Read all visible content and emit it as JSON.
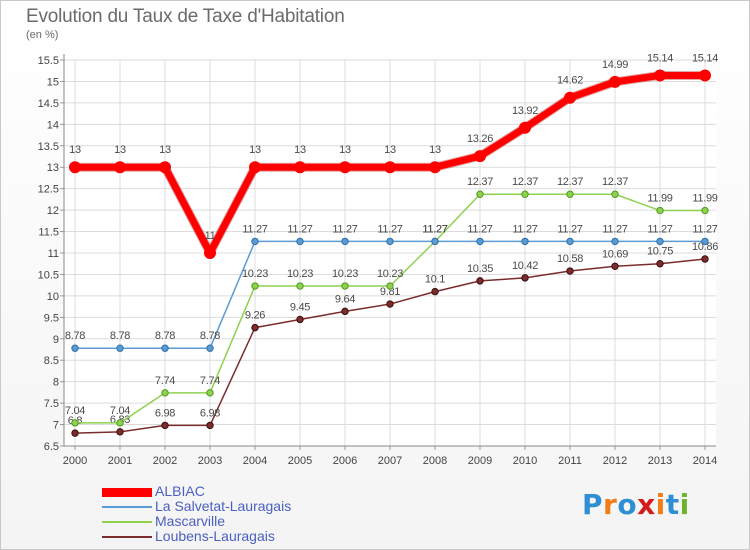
{
  "title": "Evolution du Taux de Taxe d'Habitation",
  "subtitle": "(en %)",
  "logo": {
    "text": "Proxiti",
    "colors": [
      "#2e8fd4",
      "#f07d1a",
      "#2e8fd4",
      "#d41a1a",
      "#f07d1a",
      "#2e8fd4",
      "#6cb32e"
    ]
  },
  "chart_data": {
    "type": "line",
    "title": "Evolution du Taux de Taxe d'Habitation",
    "subtitle": "(en %)",
    "xlabel": "",
    "ylabel": "",
    "x": [
      2000,
      2001,
      2002,
      2003,
      2004,
      2005,
      2006,
      2007,
      2008,
      2009,
      2010,
      2011,
      2012,
      2013,
      2014
    ],
    "ylim": [
      6.5,
      15.5
    ],
    "yticks": [
      6.5,
      7,
      7.5,
      8,
      8.5,
      9,
      9.5,
      10,
      10.5,
      11,
      11.5,
      12,
      12.5,
      13,
      13.5,
      14,
      14.5,
      15,
      15.5
    ],
    "grid": true,
    "legend_position": "bottom-left",
    "series": [
      {
        "name": "ALBIAC",
        "color": "#ff0000",
        "values": [
          13,
          13,
          13,
          11,
          13,
          13,
          13,
          13,
          13,
          13.26,
          13.92,
          14.62,
          14.99,
          15.14,
          15.14
        ],
        "labels": [
          "13",
          "13",
          "13",
          "11",
          "13",
          "13",
          "13",
          "13",
          "13",
          "13.26",
          "13.92",
          "14.62",
          "14.99",
          "15.14",
          "15.14"
        ]
      },
      {
        "name": "La Salvetat-Lauragais",
        "color": "#5b9bd5",
        "values": [
          8.78,
          8.78,
          8.78,
          8.78,
          11.27,
          11.27,
          11.27,
          11.27,
          11.27,
          11.27,
          11.27,
          11.27,
          11.27,
          11.27,
          11.27
        ],
        "labels": [
          "8.78",
          "8.78",
          "8.78",
          "8.78",
          "11.27",
          "11.27",
          "11.27",
          "11.27",
          "11.27",
          "11.27",
          "11.27",
          "11.27",
          "11.27",
          "11.27",
          "11.27"
        ]
      },
      {
        "name": "Mascarville",
        "color": "#8fd14f",
        "values": [
          7.04,
          7.04,
          7.74,
          7.74,
          10.23,
          10.23,
          10.23,
          10.23,
          11.27,
          12.37,
          12.37,
          12.37,
          12.37,
          11.99,
          11.99
        ],
        "labels": [
          "7.04",
          "7.04",
          "7.74",
          "7.74",
          "10.23",
          "10.23",
          "10.23",
          "10.23",
          "11.27",
          "12.37",
          "12.37",
          "12.37",
          "12.37",
          "11.99",
          "11.99"
        ]
      },
      {
        "name": "Loubens-Lauragais",
        "color": "#7b2c2c",
        "values": [
          6.8,
          6.83,
          6.98,
          6.98,
          9.26,
          9.45,
          9.64,
          9.81,
          10.1,
          10.35,
          10.42,
          10.58,
          10.69,
          10.75,
          10.86
        ],
        "labels": [
          "6.8",
          "6.83",
          "6.98",
          "6.98",
          "9.26",
          "9.45",
          "9.64",
          "9.81",
          "10.1",
          "10.35",
          "10.42",
          "10.58",
          "10.69",
          "10.75",
          "10.86"
        ]
      }
    ]
  }
}
